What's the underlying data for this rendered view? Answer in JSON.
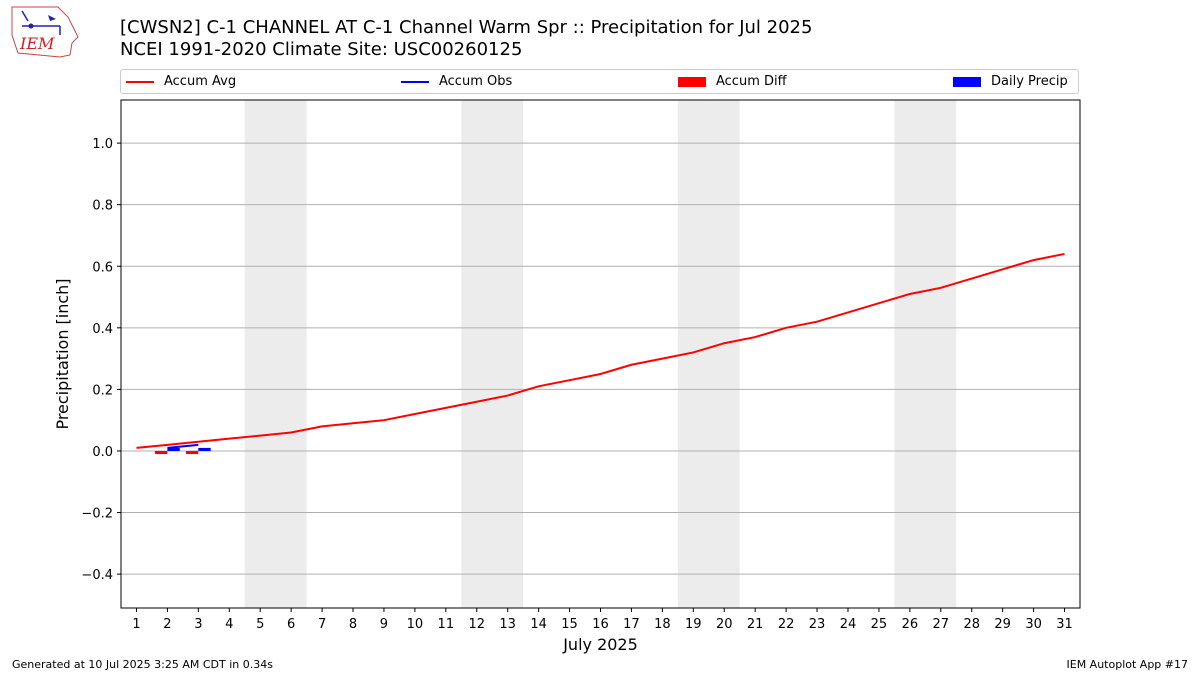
{
  "header": {
    "title_line1": "[CWSN2] C-1 CHANNEL  AT C-1 Channel Warm Spr :: Precipitation for Jul 2025",
    "title_line2": "NCEI 1991-2020 Climate Site: USC00260125",
    "logo_text": "IEM"
  },
  "legend": {
    "items": [
      {
        "label": "Accum Avg",
        "kind": "line",
        "color": "#ff0000"
      },
      {
        "label": "Accum Obs",
        "kind": "line",
        "color": "#0000ff"
      },
      {
        "label": "Accum Diff",
        "kind": "bar",
        "color": "#ff0000"
      },
      {
        "label": "Daily Precip",
        "kind": "bar",
        "color": "#0000ff"
      }
    ]
  },
  "footer": {
    "left": "Generated at 10 Jul 2025 3:25 AM CDT in 0.34s",
    "right": "IEM Autoplot App #17"
  },
  "chart_data": {
    "type": "line",
    "title": "[CWSN2] C-1 CHANNEL  AT C-1 Channel Warm Spr :: Precipitation for Jul 2025",
    "xlabel": "July 2025",
    "ylabel": "Precipitation [inch]",
    "x": [
      1,
      2,
      3,
      4,
      5,
      6,
      7,
      8,
      9,
      10,
      11,
      12,
      13,
      14,
      15,
      16,
      17,
      18,
      19,
      20,
      21,
      22,
      23,
      24,
      25,
      26,
      27,
      28,
      29,
      30,
      31
    ],
    "xlim": [
      0.5,
      31.5
    ],
    "ylim": [
      -0.51,
      1.14
    ],
    "yticks": [
      -0.4,
      -0.2,
      0.0,
      0.2,
      0.4,
      0.6,
      0.8,
      1.0
    ],
    "ytick_labels": [
      "−0.4",
      "−0.2",
      "0.0",
      "0.2",
      "0.4",
      "0.6",
      "0.8",
      "1.0"
    ],
    "grid": "horizontal",
    "weekend_shading": [
      [
        4.5,
        6.5
      ],
      [
        11.5,
        13.5
      ],
      [
        18.5,
        20.5
      ],
      [
        25.5,
        27.5
      ]
    ],
    "series": [
      {
        "name": "Accum Avg",
        "kind": "line",
        "color": "#ff0000",
        "x": [
          1,
          2,
          3,
          4,
          5,
          6,
          7,
          8,
          9,
          10,
          11,
          12,
          13,
          14,
          15,
          16,
          17,
          18,
          19,
          20,
          21,
          22,
          23,
          24,
          25,
          26,
          27,
          28,
          29,
          30,
          31
        ],
        "values": [
          0.01,
          0.02,
          0.03,
          0.04,
          0.05,
          0.06,
          0.08,
          0.09,
          0.1,
          0.12,
          0.14,
          0.16,
          0.18,
          0.21,
          0.23,
          0.25,
          0.28,
          0.3,
          0.32,
          0.35,
          0.37,
          0.4,
          0.42,
          0.45,
          0.48,
          0.51,
          0.53,
          0.56,
          0.59,
          0.62,
          0.64
        ]
      },
      {
        "name": "Accum Obs",
        "kind": "line",
        "color": "#0000ff",
        "x": [
          2,
          3
        ],
        "values": [
          0.01,
          0.02
        ]
      },
      {
        "name": "Accum Diff",
        "kind": "bar",
        "color": "#ff0000",
        "x": [
          1.8,
          2.8
        ],
        "values": [
          -0.01,
          -0.01
        ]
      },
      {
        "name": "Daily Precip",
        "kind": "bar",
        "color": "#0000ff",
        "x": [
          2.2,
          3.2
        ],
        "values": [
          0.01,
          0.01
        ]
      }
    ],
    "legend_position": "top"
  }
}
